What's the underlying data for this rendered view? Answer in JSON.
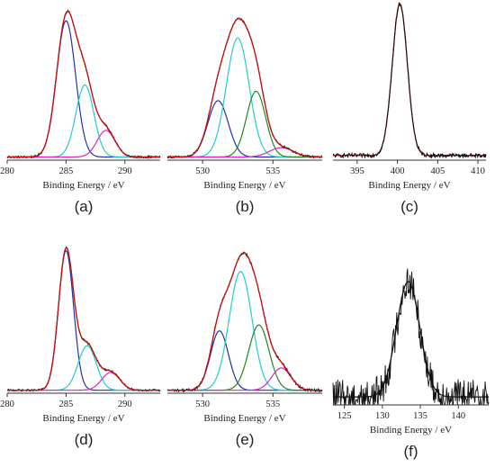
{
  "chart_data": [
    {
      "type": "line",
      "panel_label": "(a)",
      "xlabel": "Binding Energy / eV",
      "xlim": [
        280,
        293
      ],
      "xticks": [
        280,
        285,
        290
      ],
      "baseline": 0.02,
      "components": [
        {
          "color": "#2233aa",
          "center": 285.0,
          "height": 0.87,
          "width": 1.9
        },
        {
          "color": "#22cccc",
          "center": 286.6,
          "height": 0.46,
          "width": 1.8
        },
        {
          "color": "#dd22cc",
          "center": 288.4,
          "height": 0.17,
          "width": 1.8
        }
      ],
      "measured": {
        "color": "#111111",
        "noise": 0.006
      },
      "envelope": {
        "color": "#cc1111"
      }
    },
    {
      "type": "line",
      "panel_label": "(b)",
      "xlabel": "Binding Energy / eV",
      "xlim": [
        527.5,
        538.5
      ],
      "xticks": [
        530,
        535
      ],
      "baseline": 0.02,
      "components": [
        {
          "color": "#2233aa",
          "center": 531.1,
          "height": 0.36,
          "width": 1.7
        },
        {
          "color": "#22cccc",
          "center": 532.5,
          "height": 0.76,
          "width": 1.9
        },
        {
          "color": "#228822",
          "center": 533.8,
          "height": 0.42,
          "width": 1.6
        },
        {
          "color": "#dd22cc",
          "center": 535.6,
          "height": 0.06,
          "width": 2.0
        }
      ],
      "measured": {
        "color": "#111111",
        "noise": 0.006
      },
      "envelope": {
        "color": "#cc1111"
      }
    },
    {
      "type": "line",
      "panel_label": "(c)",
      "xlabel": "Binding Energy / eV",
      "xlim": [
        392,
        411
      ],
      "xticks": [
        395,
        400,
        405,
        410
      ],
      "baseline": 0.03,
      "components": [
        {
          "color": "#cc1111",
          "center": 400.3,
          "height": 0.97,
          "width": 2.2
        }
      ],
      "measured": {
        "color": "#111111",
        "noise": 0.012
      },
      "envelope": null
    },
    {
      "type": "line",
      "panel_label": "(d)",
      "xlabel": "Binding Energy / eV",
      "xlim": [
        280,
        293
      ],
      "xticks": [
        280,
        285,
        290
      ],
      "baseline": 0.02,
      "components": [
        {
          "color": "#2233aa",
          "center": 285.0,
          "height": 0.94,
          "width": 1.5
        },
        {
          "color": "#22cccc",
          "center": 286.8,
          "height": 0.3,
          "width": 1.8
        },
        {
          "color": "#dd22cc",
          "center": 288.8,
          "height": 0.12,
          "width": 1.8
        }
      ],
      "measured": {
        "color": "#111111",
        "noise": 0.006
      },
      "envelope": {
        "color": "#cc1111"
      }
    },
    {
      "type": "line",
      "panel_label": "(e)",
      "xlabel": "Binding Energy / eV",
      "xlim": [
        527.5,
        538.5
      ],
      "xticks": [
        530,
        535
      ],
      "baseline": 0.02,
      "components": [
        {
          "color": "#2233aa",
          "center": 531.2,
          "height": 0.4,
          "width": 1.5
        },
        {
          "color": "#22cccc",
          "center": 532.7,
          "height": 0.8,
          "width": 1.9
        },
        {
          "color": "#228822",
          "center": 534.0,
          "height": 0.44,
          "width": 1.7
        },
        {
          "color": "#dd22cc",
          "center": 535.6,
          "height": 0.15,
          "width": 1.6
        }
      ],
      "measured": {
        "color": "#111111",
        "noise": 0.008
      },
      "envelope": {
        "color": "#cc1111"
      }
    },
    {
      "type": "line",
      "panel_label": "(f)",
      "xlabel": "Binding Energy / eV",
      "xlim": [
        123.5,
        144
      ],
      "xticks": [
        125,
        130,
        135,
        140
      ],
      "baseline": 0.05,
      "components": [
        {
          "color": "#111111",
          "center": 133.4,
          "height": 0.72,
          "width": 3.6
        }
      ],
      "measured": {
        "color": "#111111",
        "noise": 0.11
      },
      "envelope": null
    }
  ]
}
